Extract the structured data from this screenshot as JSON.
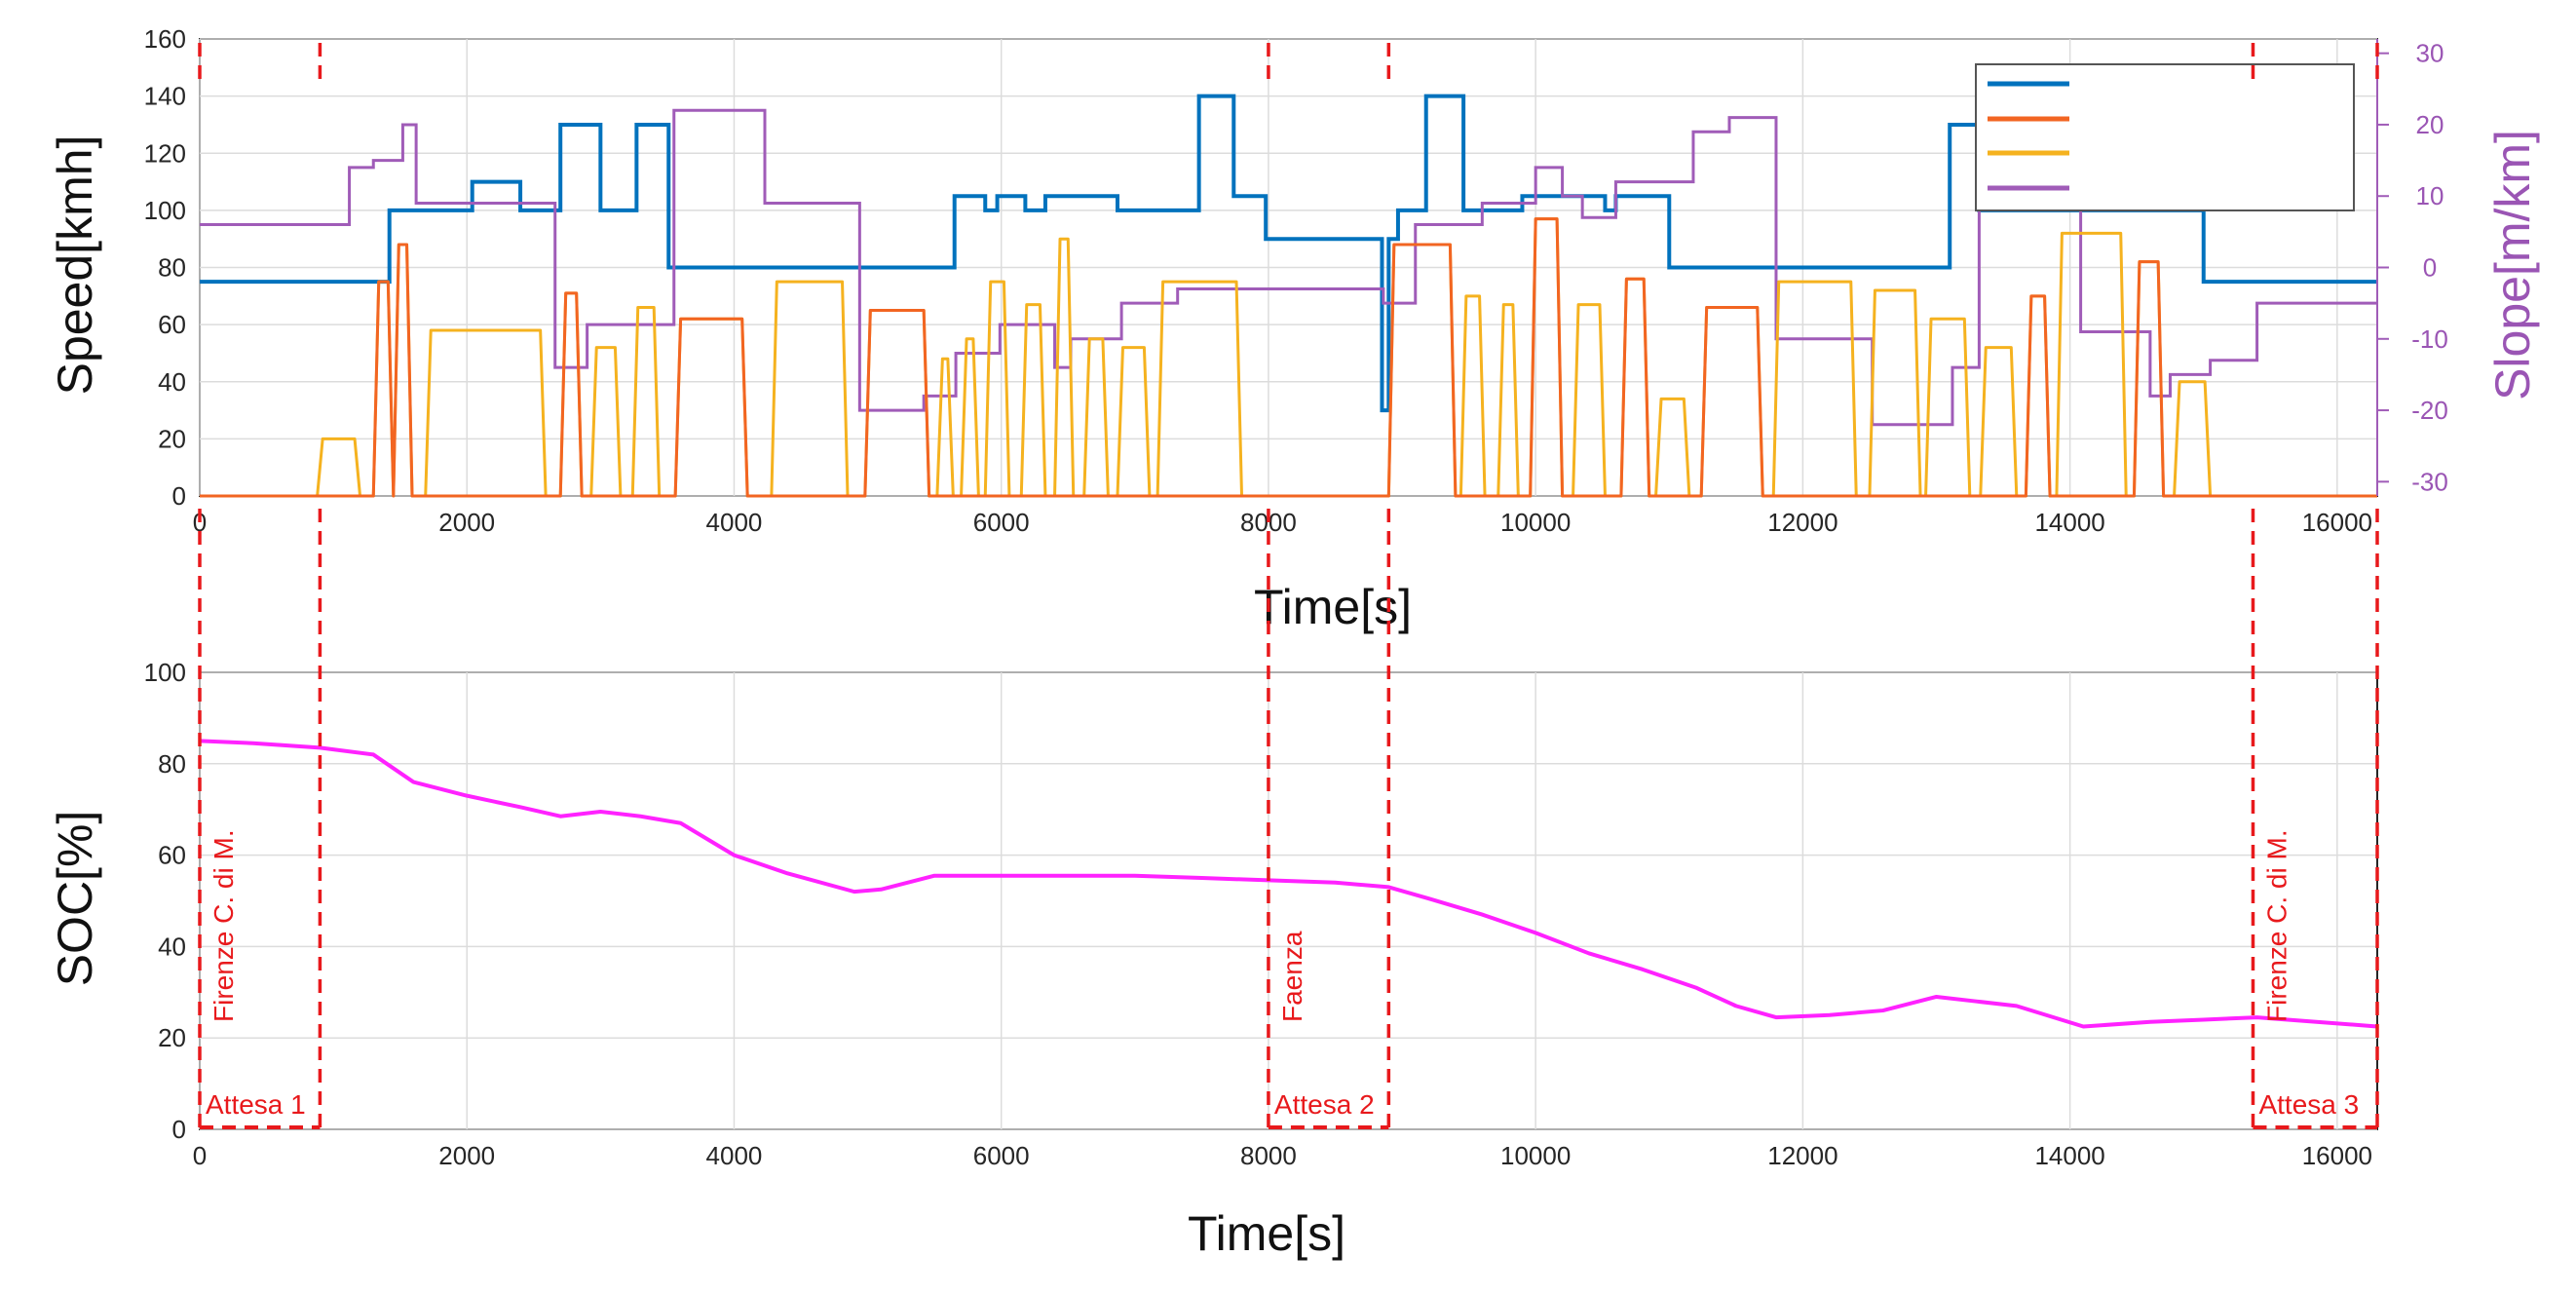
{
  "figure": {
    "colors": {
      "speed_limit": "#0072BD",
      "target_speed": "#F26522",
      "actual_speed": "#F5B21F",
      "slope": "#A05CB8",
      "soc": "#FF22FF",
      "marker": "#E8191C"
    }
  },
  "chart_data": [
    {
      "type": "line",
      "xlabel": "Time[s]",
      "ylabel": "Speed[kmh]",
      "y2label": "Slope[m/km]",
      "xlim": [
        0,
        16300
      ],
      "ylim": [
        0,
        160
      ],
      "y2lim": [
        -32,
        32
      ],
      "x_ticks": [
        0,
        2000,
        4000,
        6000,
        8000,
        10000,
        12000,
        14000,
        16000
      ],
      "y_ticks": [
        0,
        20,
        40,
        60,
        80,
        100,
        120,
        140,
        160
      ],
      "y2_ticks": [
        -30,
        -20,
        -10,
        0,
        10,
        20,
        30
      ],
      "grid": true,
      "legend": {
        "position": "top-right",
        "entries": [
          "",
          "",
          "",
          ""
        ]
      },
      "series": [
        {
          "axis": "left",
          "color": "speed_limit",
          "step": true,
          "x": [
            0,
            1420,
            2040,
            2400,
            2700,
            3000,
            3270,
            3510,
            5650,
            5880,
            5970,
            6180,
            6330,
            6480,
            6870,
            7480,
            7740,
            7980,
            8850,
            8900,
            8970,
            9180,
            9460,
            9900,
            10200,
            10520,
            10600,
            10700,
            11000,
            13100,
            13320,
            15000,
            16300
          ],
          "y": [
            75,
            100,
            110,
            100,
            130,
            100,
            130,
            80,
            105,
            100,
            105,
            100,
            105,
            105,
            100,
            140,
            105,
            90,
            30,
            90,
            100,
            140,
            100,
            105,
            105,
            100,
            105,
            105,
            80,
            130,
            100,
            75,
            75
          ]
        },
        {
          "axis": "right",
          "color": "slope",
          "step": true,
          "x": [
            0,
            1120,
            1300,
            1520,
            1620,
            2660,
            2900,
            3550,
            4230,
            4940,
            5420,
            5660,
            5990,
            6400,
            6520,
            6900,
            7320,
            8860,
            9100,
            9600,
            10000,
            10200,
            10350,
            10600,
            10650,
            11180,
            11450,
            11800,
            12520,
            13120,
            13320,
            14080,
            14600,
            14750,
            14850,
            15050,
            15400,
            16300
          ],
          "y": [
            6,
            14,
            15,
            20,
            9,
            -14,
            -8,
            22,
            9,
            -20,
            -18,
            -12,
            -8,
            -14,
            -10,
            -5,
            -3,
            -5,
            6,
            9,
            14,
            10,
            7,
            12,
            12,
            19,
            21,
            -10,
            -22,
            -14,
            16,
            -9,
            -18,
            -15,
            -15,
            -13,
            -5,
            -5
          ]
        },
        {
          "axis": "left",
          "color": "actual_speed",
          "step": false,
          "trips": [
            [
              880,
              20,
              1200
            ],
            [
              1300,
              75,
              1450
            ],
            [
              1450,
              88,
              1590
            ],
            [
              1690,
              58,
              2590
            ],
            [
              2700,
              71,
              2860
            ],
            [
              2930,
              52,
              3150
            ],
            [
              3240,
              66,
              3440
            ],
            [
              3560,
              62,
              4100
            ],
            [
              4280,
              75,
              4850
            ],
            [
              4980,
              65,
              5460
            ],
            [
              5520,
              48,
              5640
            ],
            [
              5700,
              55,
              5830
            ],
            [
              5880,
              75,
              6060
            ],
            [
              6150,
              67,
              6330
            ],
            [
              6400,
              90,
              6540
            ],
            [
              6620,
              55,
              6800
            ],
            [
              6870,
              52,
              7110
            ],
            [
              7170,
              75,
              7800
            ],
            [
              8900,
              88,
              9400
            ],
            [
              9440,
              70,
              9620
            ],
            [
              9720,
              67,
              9870
            ],
            [
              9960,
              97,
              10200
            ],
            [
              10280,
              67,
              10520
            ],
            [
              10640,
              76,
              10850
            ],
            [
              10900,
              34,
              11150
            ],
            [
              11240,
              66,
              11700
            ],
            [
              11780,
              75,
              12400
            ],
            [
              12500,
              72,
              12880
            ],
            [
              12920,
              62,
              13250
            ],
            [
              13330,
              52,
              13600
            ],
            [
              13670,
              70,
              13850
            ],
            [
              13900,
              92,
              14420
            ],
            [
              14480,
              82,
              14700
            ],
            [
              14780,
              40,
              15050
            ]
          ]
        },
        {
          "axis": "left",
          "color": "target_speed",
          "step": false,
          "trips": [
            [
              1300,
              75,
              1450
            ],
            [
              1450,
              88,
              1590
            ],
            [
              2700,
              71,
              2860
            ],
            [
              3560,
              62,
              4100
            ],
            [
              4980,
              65,
              5460
            ],
            [
              8900,
              88,
              9400
            ],
            [
              9960,
              97,
              10200
            ],
            [
              10640,
              76,
              10850
            ],
            [
              11240,
              66,
              11700
            ],
            [
              13670,
              70,
              13850
            ],
            [
              14480,
              82,
              14700
            ]
          ]
        }
      ]
    },
    {
      "type": "line",
      "xlabel": "Time[s]",
      "ylabel": "SOC[%]",
      "xlim": [
        0,
        16300
      ],
      "ylim": [
        0,
        100
      ],
      "x_ticks": [
        0,
        2000,
        4000,
        6000,
        8000,
        10000,
        12000,
        14000,
        16000
      ],
      "y_ticks": [
        0,
        20,
        40,
        60,
        80,
        100
      ],
      "grid": true,
      "series": [
        {
          "color": "soc",
          "x": [
            0,
            400,
            900,
            1300,
            1600,
            2000,
            2400,
            2700,
            3000,
            3300,
            3600,
            4000,
            4400,
            4900,
            5100,
            5500,
            6000,
            6500,
            7000,
            7500,
            8000,
            8500,
            8900,
            9200,
            9600,
            10000,
            10400,
            10800,
            11200,
            11500,
            11800,
            12200,
            12600,
            13000,
            13300,
            13600,
            14100,
            14600,
            15000,
            15400,
            16300
          ],
          "y": [
            85,
            84.5,
            83.5,
            82,
            76,
            73,
            70.5,
            68.5,
            69.5,
            68.5,
            67,
            60,
            56,
            52,
            52.5,
            55.5,
            55.5,
            55.5,
            55.5,
            55,
            54.5,
            54,
            53,
            50.5,
            47,
            43,
            38.5,
            35,
            31,
            27,
            24.5,
            25,
            26,
            29,
            28,
            27,
            22.5,
            23.5,
            24,
            24.5,
            22.5
          ]
        }
      ],
      "markers": [
        {
          "x": 0,
          "label": "Attesa 1"
        },
        {
          "x": 900,
          "label": ""
        },
        {
          "x": 8000,
          "label": "Attesa 2"
        },
        {
          "x": 8900,
          "label": ""
        },
        {
          "x": 15370,
          "label": "Attesa 3"
        },
        {
          "x": 16300,
          "label": ""
        }
      ],
      "stations": [
        {
          "x": 0,
          "label": "Firenze C. di M."
        },
        {
          "x": 8000,
          "label": "Faenza"
        },
        {
          "x": 15370,
          "label": "Firenze C. di M."
        }
      ]
    }
  ]
}
